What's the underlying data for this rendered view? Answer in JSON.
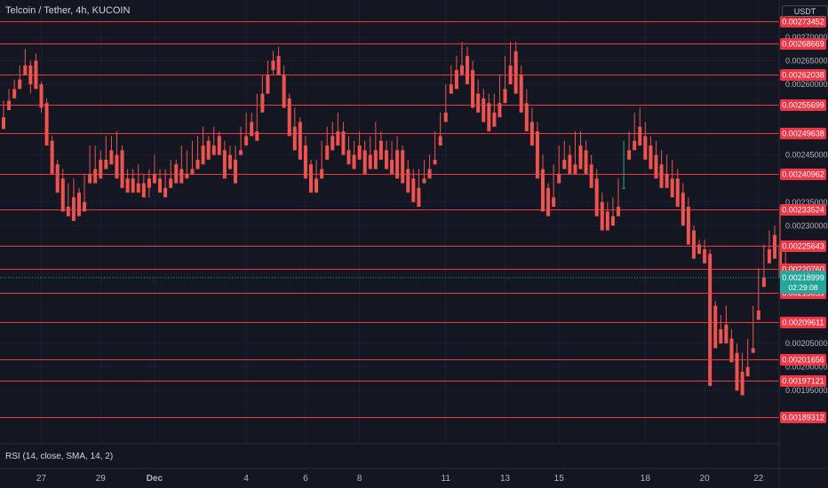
{
  "header": {
    "title": "Telcoin / Tether, 4h, KUCOIN",
    "currency": "USDT"
  },
  "indicator": {
    "label": "RSI (14, close, SMA, 14, 2)"
  },
  "colors": {
    "background": "#131722",
    "up": "#26a69a",
    "down": "#ef5350",
    "level_line": "#f23645",
    "axis_text": "#b2b5be"
  },
  "chart_data": {
    "type": "candlestick",
    "title": "Telcoin / Tether, 4h, KUCOIN",
    "y_range": [
      0.00186,
      0.00276
    ],
    "price_ticks": [
      "0.00270000",
      "0.00265000",
      "0.00260000",
      "0.00245000",
      "0.00235000",
      "0.00230000",
      "0.00205000",
      "0.00200000",
      "0.00195000"
    ],
    "x_ticks": [
      {
        "label": "27",
        "bar": 7
      },
      {
        "label": "29",
        "bar": 18
      },
      {
        "label": "Dec",
        "bar": 28
      },
      {
        "label": "4",
        "bar": 45
      },
      {
        "label": "6",
        "bar": 56
      },
      {
        "label": "8",
        "bar": 66
      },
      {
        "label": "11",
        "bar": 82
      },
      {
        "label": "13",
        "bar": 93
      },
      {
        "label": "15",
        "bar": 103
      },
      {
        "label": "18",
        "bar": 119
      },
      {
        "label": "20",
        "bar": 130
      },
      {
        "label": "22",
        "bar": 140
      }
    ],
    "levels": [
      {
        "value": 0.00273452,
        "label": "0.00273452"
      },
      {
        "value": 0.00268669,
        "label": "0.00268669"
      },
      {
        "value": 0.00262038,
        "label": "0.00262038"
      },
      {
        "value": 0.00255699,
        "label": "0.00255699"
      },
      {
        "value": 0.00249638,
        "label": "0.00249638"
      },
      {
        "value": 0.00240962,
        "label": "0.00240962"
      },
      {
        "value": 0.00233524,
        "label": "0.00233524"
      },
      {
        "value": 0.00225643,
        "label": "0.00225643"
      },
      {
        "value": 0.0022076,
        "label": "0.00220760"
      },
      {
        "value": 0.00215659,
        "label": "0.00215659"
      },
      {
        "value": 0.00209611,
        "label": "0.00209611"
      },
      {
        "value": 0.00201656,
        "label": "0.00201656"
      },
      {
        "value": 0.00197121,
        "label": "0.00197121"
      },
      {
        "value": 0.00189312,
        "label": "0.00189312"
      }
    ],
    "current_price": {
      "value": 0.00218999,
      "label": "0.00218999",
      "countdown": "02:29:08"
    },
    "candles": [
      [
        0.00253,
        0.002565,
        0.00252,
        0.002505
      ],
      [
        0.002565,
        0.00259,
        0.00256,
        0.002545
      ],
      [
        0.00259,
        0.00261,
        0.002585,
        0.00257
      ],
      [
        0.00261,
        0.00264,
        0.0026,
        0.00259
      ],
      [
        0.00264,
        0.002675,
        0.00263,
        0.00262
      ],
      [
        0.00264,
        0.00265,
        0.00258,
        0.0026
      ],
      [
        0.00265,
        0.002665,
        0.00261,
        0.00259
      ],
      [
        0.0026,
        0.002605,
        0.00254,
        0.00255
      ],
      [
        0.00256,
        0.00257,
        0.00248,
        0.00247
      ],
      [
        0.00248,
        0.00249,
        0.00243,
        0.00241
      ],
      [
        0.00243,
        0.00244,
        0.0024,
        0.00237
      ],
      [
        0.0024,
        0.00242,
        0.00234,
        0.00233
      ],
      [
        0.00234,
        0.00239,
        0.00233,
        0.00232
      ],
      [
        0.00236,
        0.0024,
        0.00235,
        0.00231
      ],
      [
        0.00237,
        0.00238,
        0.00234,
        0.00232
      ],
      [
        0.00235,
        0.00241,
        0.00234,
        0.00233
      ],
      [
        0.00241,
        0.00247,
        0.0024,
        0.00239
      ],
      [
        0.00242,
        0.00247,
        0.00241,
        0.00239
      ],
      [
        0.00244,
        0.00246,
        0.00242,
        0.0024
      ],
      [
        0.00244,
        0.00249,
        0.00243,
        0.00242
      ],
      [
        0.00246,
        0.00249,
        0.00244,
        0.00243
      ],
      [
        0.00245,
        0.0025,
        0.00243,
        0.0024
      ],
      [
        0.00246,
        0.00247,
        0.00239,
        0.00238
      ],
      [
        0.0024,
        0.00242,
        0.00239,
        0.00237
      ],
      [
        0.0024,
        0.00242,
        0.00238,
        0.00237
      ],
      [
        0.00239,
        0.00243,
        0.00238,
        0.00237
      ],
      [
        0.00239,
        0.00241,
        0.00237,
        0.00236
      ],
      [
        0.0024,
        0.00242,
        0.00236,
        0.00238
      ],
      [
        0.00241,
        0.00245,
        0.0024,
        0.00239
      ],
      [
        0.0024,
        0.00242,
        0.00238,
        0.00237
      ],
      [
        0.00238,
        0.00242,
        0.00237,
        0.00236
      ],
      [
        0.0024,
        0.00244,
        0.00239,
        0.00238
      ],
      [
        0.00243,
        0.00244,
        0.0024,
        0.00239
      ],
      [
        0.00242,
        0.00247,
        0.00241,
        0.00239
      ],
      [
        0.00241,
        0.00246,
        0.0024,
        0.0024
      ],
      [
        0.00242,
        0.00248,
        0.00241,
        0.00241
      ],
      [
        0.00244,
        0.00249,
        0.00243,
        0.00242
      ],
      [
        0.00247,
        0.00251,
        0.00246,
        0.00243
      ],
      [
        0.00248,
        0.00249,
        0.00245,
        0.00244
      ],
      [
        0.00247,
        0.00251,
        0.00247,
        0.00245
      ],
      [
        0.00249,
        0.0025,
        0.00246,
        0.00245
      ],
      [
        0.00246,
        0.00248,
        0.00244,
        0.0024
      ],
      [
        0.00245,
        0.00247,
        0.00243,
        0.00242
      ],
      [
        0.00244,
        0.00247,
        0.00243,
        0.00239
      ],
      [
        0.00246,
        0.00251,
        0.00246,
        0.00245
      ],
      [
        0.00249,
        0.00254,
        0.00247,
        0.00247
      ],
      [
        0.00252,
        0.00254,
        0.0025,
        0.00249
      ],
      [
        0.0025,
        0.00258,
        0.0025,
        0.00248
      ],
      [
        0.00258,
        0.00262,
        0.00255,
        0.00254
      ],
      [
        0.00262,
        0.00265,
        0.00259,
        0.00258
      ],
      [
        0.00265,
        0.00267,
        0.00262,
        0.00263
      ],
      [
        0.00266,
        0.00268,
        0.00262,
        0.00262
      ],
      [
        0.00262,
        0.00264,
        0.00256,
        0.00255
      ],
      [
        0.00257,
        0.00258,
        0.00249,
        0.00249
      ],
      [
        0.00251,
        0.00255,
        0.00248,
        0.00246
      ],
      [
        0.00252,
        0.00253,
        0.00245,
        0.00244
      ],
      [
        0.00247,
        0.00249,
        0.00242,
        0.0024
      ],
      [
        0.00243,
        0.00244,
        0.00238,
        0.00237
      ],
      [
        0.0024,
        0.00244,
        0.00239,
        0.00237
      ],
      [
        0.00242,
        0.00248,
        0.0024,
        0.0024
      ],
      [
        0.00247,
        0.00251,
        0.00245,
        0.00244
      ],
      [
        0.00249,
        0.00252,
        0.00247,
        0.00246
      ],
      [
        0.0025,
        0.00254,
        0.00249,
        0.00247
      ],
      [
        0.0025,
        0.00252,
        0.00246,
        0.00245
      ],
      [
        0.00246,
        0.00249,
        0.00244,
        0.00243
      ],
      [
        0.00245,
        0.00248,
        0.00244,
        0.00242
      ],
      [
        0.00247,
        0.0025,
        0.00245,
        0.00244
      ],
      [
        0.00246,
        0.00248,
        0.00243,
        0.00241
      ],
      [
        0.00245,
        0.00249,
        0.00243,
        0.00242
      ],
      [
        0.00246,
        0.00252,
        0.00244,
        0.00242
      ],
      [
        0.00248,
        0.0025,
        0.00245,
        0.00244
      ],
      [
        0.00246,
        0.00248,
        0.00243,
        0.00242
      ],
      [
        0.00244,
        0.00248,
        0.00243,
        0.00241
      ],
      [
        0.00246,
        0.00249,
        0.00244,
        0.0024
      ],
      [
        0.00246,
        0.00247,
        0.00241,
        0.00239
      ],
      [
        0.00242,
        0.00244,
        0.00238,
        0.00237
      ],
      [
        0.0024,
        0.00242,
        0.00237,
        0.00235
      ],
      [
        0.00238,
        0.00242,
        0.00236,
        0.00234
      ],
      [
        0.0024,
        0.00244,
        0.00239,
        0.00239
      ],
      [
        0.00242,
        0.00245,
        0.00241,
        0.0024
      ],
      [
        0.00244,
        0.0025,
        0.00243,
        0.00243
      ],
      [
        0.00249,
        0.00254,
        0.00248,
        0.00247
      ],
      [
        0.00254,
        0.0026,
        0.00253,
        0.00252
      ],
      [
        0.0026,
        0.00264,
        0.00259,
        0.00258
      ],
      [
        0.00263,
        0.00266,
        0.0026,
        0.00259
      ],
      [
        0.00264,
        0.00269,
        0.00263,
        0.00262
      ],
      [
        0.00266,
        0.00268,
        0.00262,
        0.0026
      ],
      [
        0.00263,
        0.00265,
        0.00258,
        0.00255
      ],
      [
        0.00258,
        0.00261,
        0.00256,
        0.00254
      ],
      [
        0.00257,
        0.00259,
        0.00254,
        0.00252
      ],
      [
        0.00256,
        0.00258,
        0.00252,
        0.0025
      ],
      [
        0.00254,
        0.00258,
        0.00252,
        0.00251
      ],
      [
        0.00256,
        0.00262,
        0.00254,
        0.00253
      ],
      [
        0.00259,
        0.00266,
        0.00258,
        0.00256
      ],
      [
        0.00264,
        0.00269,
        0.00262,
        0.0026
      ],
      [
        0.00267,
        0.00269,
        0.00259,
        0.00258
      ],
      [
        0.00262,
        0.00264,
        0.00255,
        0.00254
      ],
      [
        0.00256,
        0.00259,
        0.00252,
        0.0025
      ],
      [
        0.00252,
        0.00255,
        0.00249,
        0.00247
      ],
      [
        0.0025,
        0.00252,
        0.00241,
        0.0024
      ],
      [
        0.00242,
        0.00245,
        0.00237,
        0.00233
      ],
      [
        0.00238,
        0.00239,
        0.00234,
        0.00232
      ],
      [
        0.00236,
        0.00243,
        0.00235,
        0.00234
      ],
      [
        0.00241,
        0.00247,
        0.0024,
        0.00239
      ],
      [
        0.00244,
        0.00248,
        0.00243,
        0.00242
      ],
      [
        0.00245,
        0.00247,
        0.00242,
        0.00241
      ],
      [
        0.00243,
        0.0025,
        0.00242,
        0.00241
      ],
      [
        0.00247,
        0.0025,
        0.00244,
        0.00242
      ],
      [
        0.00246,
        0.00248,
        0.00242,
        0.00241
      ],
      [
        0.00243,
        0.00245,
        0.00239,
        0.00238
      ],
      [
        0.0024,
        0.00242,
        0.00233,
        0.00232
      ],
      [
        0.00235,
        0.00237,
        0.00231,
        0.00229
      ],
      [
        0.00233,
        0.00235,
        0.00231,
        0.00229
      ],
      [
        0.00232,
        0.00236,
        0.0023,
        0.0023
      ],
      [
        0.00234,
        0.0024,
        0.00233,
        0.00232
      ],
      [
        0.00238,
        0.00248,
        0.00238,
        0.00238
      ],
      [
        0.00246,
        0.0025,
        0.00245,
        0.00244
      ],
      [
        0.00248,
        0.00254,
        0.00247,
        0.00246
      ],
      [
        0.00251,
        0.00255,
        0.00249,
        0.00247
      ],
      [
        0.00249,
        0.00252,
        0.00246,
        0.00244
      ],
      [
        0.00247,
        0.00249,
        0.00244,
        0.00242
      ],
      [
        0.00245,
        0.00248,
        0.00241,
        0.0024
      ],
      [
        0.00243,
        0.00246,
        0.0024,
        0.00238
      ],
      [
        0.00241,
        0.00245,
        0.00239,
        0.00238
      ],
      [
        0.0024,
        0.00244,
        0.00237,
        0.00236
      ],
      [
        0.0024,
        0.00242,
        0.00235,
        0.00234
      ],
      [
        0.00237,
        0.00239,
        0.00232,
        0.0023
      ],
      [
        0.00234,
        0.00236,
        0.00227,
        0.00226
      ],
      [
        0.00229,
        0.0023,
        0.00225,
        0.00223
      ],
      [
        0.00226,
        0.00227,
        0.00224,
        0.00224
      ],
      [
        0.00225,
        0.00227,
        0.00223,
        0.00222
      ],
      [
        0.00224,
        0.00225,
        0.00212,
        0.00196
      ],
      [
        0.00213,
        0.00214,
        0.00206,
        0.00204
      ],
      [
        0.00208,
        0.00211,
        0.00207,
        0.00205
      ],
      [
        0.00209,
        0.00213,
        0.00206,
        0.00205
      ],
      [
        0.00206,
        0.00208,
        0.00202,
        0.00201
      ],
      [
        0.00203,
        0.00205,
        0.00199,
        0.00195
      ],
      [
        0.00199,
        0.00203,
        0.00199,
        0.00194
      ],
      [
        0.002,
        0.00206,
        0.00199,
        0.00198
      ],
      [
        0.00204,
        0.00213,
        0.00204,
        0.00203
      ],
      [
        0.00212,
        0.00221,
        0.00211,
        0.0021
      ],
      [
        0.00219,
        0.00226,
        0.00218,
        0.00217
      ],
      [
        0.00225,
        0.00229,
        0.00224,
        0.00222
      ],
      [
        0.00228,
        0.0023,
        0.00224,
        0.00223
      ],
      [
        0.00226,
        0.00234,
        0.0022,
        0.00219
      ],
      [
        0.00222,
        0.00225,
        0.00218,
        0.00217
      ],
      [
        0.00218,
        0.0022,
        0.00216,
        0.00215
      ],
      [
        0.00217,
        0.00219,
        0.00216,
        0.00216
      ],
      [
        0.00218,
        0.0022,
        0.002175,
        0.00217
      ]
    ]
  }
}
